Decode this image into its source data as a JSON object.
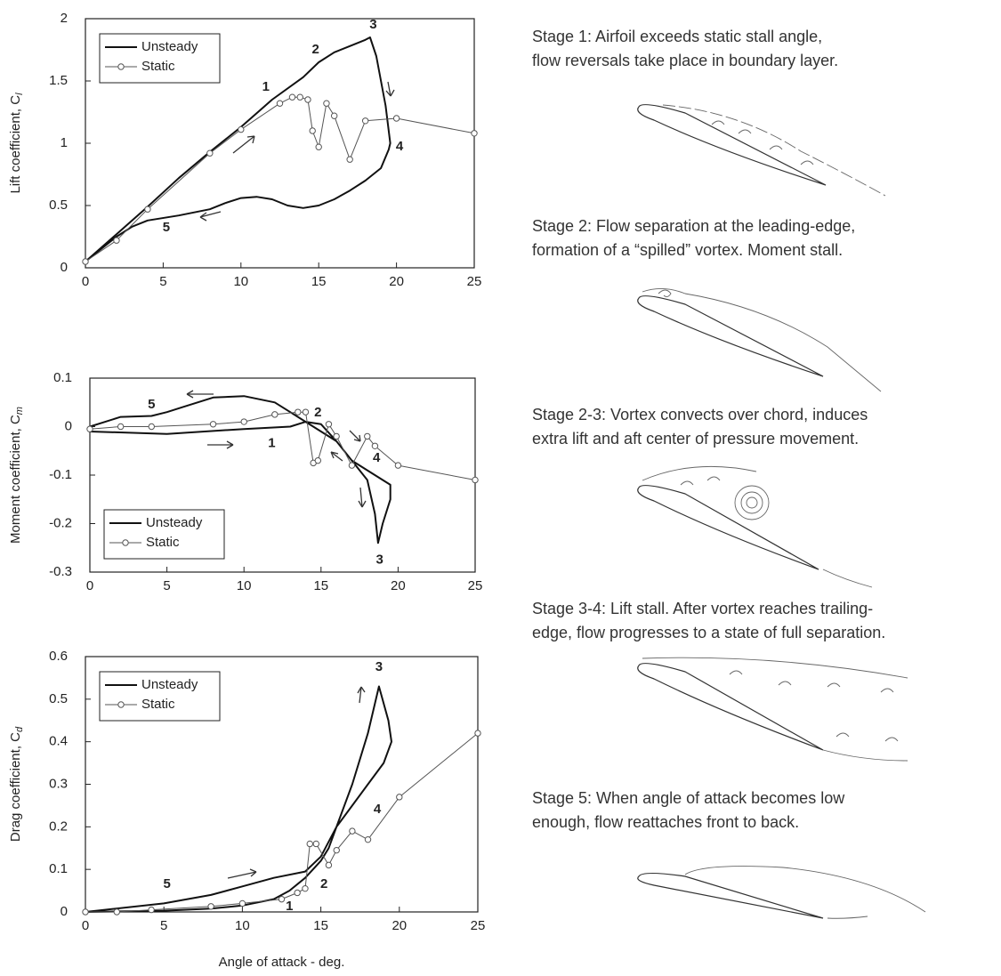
{
  "chart_data": [
    {
      "type": "line",
      "ylabel": "Lift coefficient, C",
      "ylabel_sub": "l",
      "xlim": [
        0,
        25
      ],
      "xticks": [
        0,
        5,
        10,
        15,
        20,
        25
      ],
      "ylim": [
        0,
        2
      ],
      "yticks": [
        0,
        0.5,
        1,
        1.5,
        2
      ],
      "legend": "upper left",
      "series": [
        {
          "name": "Unsteady",
          "color": "#111111",
          "x": [
            0,
            2,
            4,
            6,
            8,
            10,
            12,
            14,
            15,
            16,
            17,
            18,
            18.3,
            18.7,
            19.3,
            19.6,
            19.5,
            19,
            18,
            17,
            16,
            15,
            14,
            13,
            12,
            11,
            10,
            9,
            8,
            6,
            4,
            3,
            2,
            1,
            0
          ],
          "values": [
            0.05,
            0.27,
            0.49,
            0.72,
            0.93,
            1.13,
            1.35,
            1.53,
            1.65,
            1.73,
            1.78,
            1.83,
            1.85,
            1.7,
            1.3,
            1.0,
            0.95,
            0.8,
            0.7,
            0.62,
            0.55,
            0.5,
            0.48,
            0.5,
            0.55,
            0.57,
            0.56,
            0.52,
            0.47,
            0.42,
            0.38,
            0.33,
            0.25,
            0.15,
            0.05
          ]
        },
        {
          "name": "Static",
          "color": "#555555",
          "marker": "o",
          "x": [
            0,
            2,
            4,
            8,
            10,
            12.5,
            13.3,
            13.8,
            14.3,
            14.6,
            15,
            15.5,
            16,
            17,
            18,
            20,
            25
          ],
          "values": [
            0.05,
            0.22,
            0.47,
            0.92,
            1.11,
            1.32,
            1.37,
            1.37,
            1.35,
            1.1,
            0.97,
            1.32,
            1.22,
            0.87,
            1.18,
            1.2,
            1.08
          ]
        }
      ],
      "annotations": [
        {
          "text": "1",
          "x": 11.6,
          "y": 1.45
        },
        {
          "text": "2",
          "x": 14.8,
          "y": 1.75
        },
        {
          "text": "3",
          "x": 18.5,
          "y": 1.95
        },
        {
          "text": "4",
          "x": 20.2,
          "y": 0.97
        },
        {
          "text": "5",
          "x": 5.2,
          "y": 0.32
        }
      ]
    },
    {
      "type": "line",
      "ylabel": "Moment coefficient, C",
      "ylabel_sub": "m",
      "xlim": [
        0,
        25
      ],
      "xticks": [
        0,
        5,
        10,
        15,
        20,
        25
      ],
      "ylim": [
        -0.3,
        0.1
      ],
      "yticks": [
        0.1,
        0,
        -0.1,
        -0.2,
        -0.3
      ],
      "legend": "lower left",
      "series": [
        {
          "name": "Unsteady",
          "color": "#111111",
          "x": [
            0,
            5,
            10,
            13,
            14,
            15,
            16,
            17,
            18,
            18.5,
            18.7,
            19,
            19.5,
            19.5,
            18,
            17,
            16,
            15,
            14,
            13,
            12,
            10,
            8,
            6,
            5,
            4,
            2,
            0,
            0
          ],
          "values": [
            -0.01,
            -0.015,
            -0.005,
            0.0,
            0.01,
            0.005,
            -0.03,
            -0.07,
            -0.11,
            -0.18,
            -0.24,
            -0.2,
            -0.15,
            -0.12,
            -0.09,
            -0.07,
            -0.03,
            -0.01,
            0.01,
            0.03,
            0.05,
            0.063,
            0.06,
            0.04,
            0.03,
            0.022,
            0.02,
            0.0,
            -0.01
          ]
        },
        {
          "name": "Static",
          "color": "#555555",
          "marker": "o",
          "x": [
            0,
            2,
            4,
            8,
            10,
            12,
            13.5,
            14,
            14.5,
            14.8,
            15.5,
            16,
            17,
            18,
            18.5,
            20,
            25
          ],
          "values": [
            -0.005,
            0.0,
            0.0,
            0.005,
            0.01,
            0.025,
            0.03,
            0.03,
            -0.075,
            -0.07,
            0.005,
            -0.02,
            -0.08,
            -0.02,
            -0.04,
            -0.08,
            -0.11
          ]
        }
      ],
      "annotations": [
        {
          "text": "5",
          "x": 4,
          "y": 0.045
        },
        {
          "text": "2",
          "x": 14.8,
          "y": 0.028
        },
        {
          "text": "1",
          "x": 11.8,
          "y": -0.035
        },
        {
          "text": "4",
          "x": 18.6,
          "y": -0.065
        },
        {
          "text": "3",
          "x": 18.8,
          "y": -0.275
        }
      ]
    },
    {
      "type": "line",
      "ylabel": "Drag coefficient, C",
      "ylabel_sub": "d",
      "xlabel": "Angle of attack - deg.",
      "xlim": [
        0,
        25
      ],
      "xticks": [
        0,
        5,
        10,
        15,
        20,
        25
      ],
      "ylim": [
        0,
        0.6
      ],
      "yticks": [
        0,
        0.1,
        0.2,
        0.3,
        0.4,
        0.5,
        0.6
      ],
      "legend": "upper left",
      "series": [
        {
          "name": "Unsteady",
          "color": "#111111",
          "x": [
            0,
            5,
            8,
            10,
            12,
            14,
            15,
            16,
            17,
            18,
            18.7,
            19.3,
            19.5,
            19,
            18,
            17,
            16,
            15.5,
            15,
            14,
            13,
            12,
            10,
            8,
            5,
            0
          ],
          "values": [
            0,
            0.02,
            0.04,
            0.06,
            0.08,
            0.095,
            0.13,
            0.2,
            0.3,
            0.42,
            0.53,
            0.45,
            0.4,
            0.35,
            0.3,
            0.25,
            0.2,
            0.15,
            0.12,
            0.08,
            0.05,
            0.03,
            0.015,
            0.008,
            0.003,
            0
          ]
        },
        {
          "name": "Static",
          "color": "#555555",
          "marker": "o",
          "x": [
            0,
            2,
            4.2,
            8,
            10,
            12.5,
            13.5,
            14,
            14.3,
            14.7,
            15.5,
            16,
            17,
            18,
            20,
            25
          ],
          "values": [
            0,
            0,
            0.005,
            0.013,
            0.02,
            0.03,
            0.045,
            0.055,
            0.16,
            0.16,
            0.11,
            0.145,
            0.19,
            0.17,
            0.27,
            0.42
          ]
        }
      ],
      "annotations": [
        {
          "text": "3",
          "x": 18.7,
          "y": 0.575
        },
        {
          "text": "4",
          "x": 18.6,
          "y": 0.24
        },
        {
          "text": "5",
          "x": 5.2,
          "y": 0.065
        },
        {
          "text": "2",
          "x": 15.2,
          "y": 0.065
        },
        {
          "text": "1",
          "x": 13,
          "y": 0.012
        }
      ]
    }
  ],
  "stages": [
    [
      "Stage 1: Airfoil exceeds static stall angle,",
      "flow reversals take place in boundary layer."
    ],
    [
      "Stage 2: Flow separation at the leading-edge,",
      "formation of a “spilled” vortex. Moment stall."
    ],
    [
      "Stage 2-3: Vortex convects over chord, induces",
      "extra lift and aft center of pressure movement."
    ],
    [
      "Stage 3-4: Lift stall. After vortex reaches trailing-",
      "edge, flow progresses to a state of full separation."
    ],
    [
      "Stage 5: When angle of attack becomes low",
      "enough, flow reattaches front to back."
    ]
  ]
}
